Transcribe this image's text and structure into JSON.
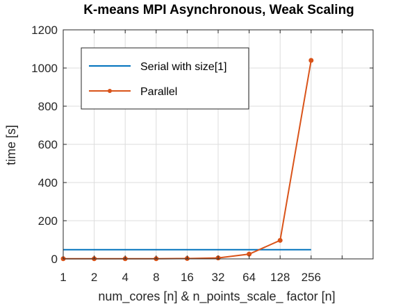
{
  "chart_data": {
    "type": "line",
    "title": "K-means MPI Asynchronous, Weak Scaling",
    "xlabel": "num_cores [n] & n_points_scale_ factor [n]",
    "ylabel": "time [s]",
    "x_categories": [
      "1",
      "2",
      "4",
      "8",
      "16",
      "32",
      "64",
      "128",
      "256"
    ],
    "x_slots": 10,
    "ylim": [
      0,
      1200
    ],
    "yticks": [
      0,
      200,
      400,
      600,
      800,
      1000,
      1200
    ],
    "grid": true,
    "legend_position": "top-left",
    "series": [
      {
        "name": "Serial with size[1]",
        "color": "#0072bd",
        "marker": "none",
        "values": [
          48,
          48,
          48,
          48,
          48,
          48,
          48,
          48,
          48
        ]
      },
      {
        "name": "Parallel",
        "color": "#d95319",
        "marker": "circle",
        "values": [
          1,
          1,
          1,
          1,
          2,
          5,
          25,
          97,
          1040
        ]
      }
    ]
  }
}
